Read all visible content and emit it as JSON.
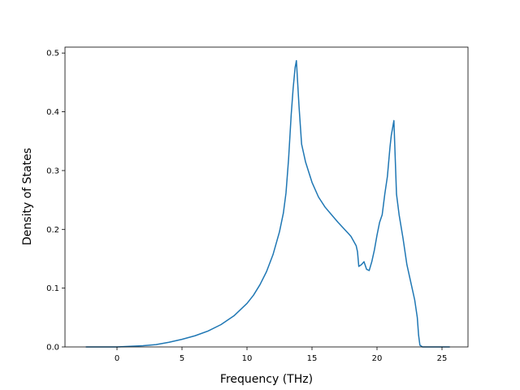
{
  "chart_data": {
    "type": "line",
    "title": "",
    "xlabel": "Frequency (THz)",
    "ylabel": "Density of States",
    "xlim": [
      -4.0,
      27.0
    ],
    "ylim": [
      0.0,
      0.51
    ],
    "xticks": [
      0,
      5,
      10,
      15,
      20,
      25
    ],
    "yticks": [
      0.0,
      0.1,
      0.2,
      0.3,
      0.4,
      0.5
    ],
    "xtick_labels": [
      "0",
      "5",
      "10",
      "15",
      "20",
      "25"
    ],
    "ytick_labels": [
      "0.0",
      "0.1",
      "0.2",
      "0.3",
      "0.4",
      "0.5"
    ],
    "grid": false,
    "line_color": "#1f77b4",
    "series": [
      {
        "x": [
          -2.4,
          -1.0,
          0.0,
          1.0,
          2.0,
          3.0,
          4.0,
          5.0,
          6.0,
          7.0,
          8.0,
          9.0,
          10.0,
          10.5,
          11.0,
          11.5,
          12.0,
          12.5,
          12.8,
          13.0,
          13.2,
          13.4,
          13.55,
          13.7,
          13.8,
          14.0,
          14.2,
          14.5,
          15.0,
          15.5,
          16.0,
          16.5,
          17.0,
          17.5,
          17.8,
          18.0,
          18.2,
          18.4,
          18.5,
          18.6,
          18.8,
          19.0,
          19.2,
          19.4,
          19.6,
          19.8,
          20.0,
          20.2,
          20.4,
          20.6,
          20.8,
          21.0,
          21.1,
          21.3,
          21.5,
          21.7,
          22.0,
          22.3,
          22.6,
          22.9,
          23.1,
          23.2,
          23.3,
          23.5,
          24.0,
          25.0,
          25.6
        ],
        "y": [
          0.0,
          0.0,
          0.0,
          0.001,
          0.002,
          0.004,
          0.008,
          0.013,
          0.019,
          0.027,
          0.038,
          0.053,
          0.074,
          0.088,
          0.106,
          0.128,
          0.157,
          0.196,
          0.228,
          0.262,
          0.32,
          0.395,
          0.44,
          0.475,
          0.487,
          0.41,
          0.345,
          0.315,
          0.28,
          0.255,
          0.238,
          0.225,
          0.212,
          0.2,
          0.193,
          0.188,
          0.18,
          0.172,
          0.162,
          0.137,
          0.14,
          0.145,
          0.132,
          0.13,
          0.145,
          0.165,
          0.19,
          0.212,
          0.225,
          0.26,
          0.29,
          0.34,
          0.36,
          0.385,
          0.26,
          0.225,
          0.185,
          0.14,
          0.11,
          0.08,
          0.05,
          0.02,
          0.003,
          0.0,
          0.0,
          0.0,
          0.0
        ]
      }
    ]
  }
}
